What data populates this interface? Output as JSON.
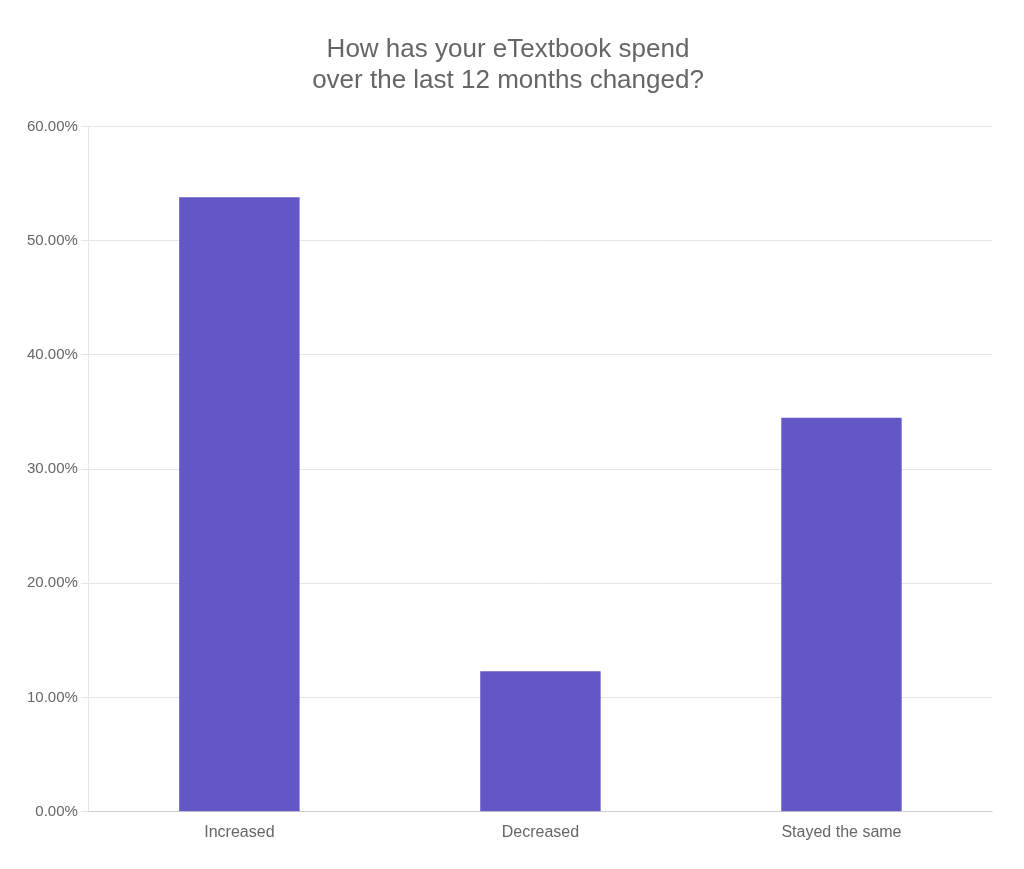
{
  "chart_data": {
    "type": "bar",
    "title": "How has your eTextbook spend\nover the last 12 months changed?",
    "categories": [
      "Increased",
      "Decreased",
      "Stayed the same"
    ],
    "values": [
      0.538,
      0.123,
      0.345
    ],
    "color": "#6357C5",
    "ylim": [
      0,
      0.6
    ],
    "yticks": [
      {
        "value": 0.0,
        "label": "0.00%"
      },
      {
        "value": 0.1,
        "label": "10.00%"
      },
      {
        "value": 0.2,
        "label": "20.00%"
      },
      {
        "value": 0.3,
        "label": "30.00%"
      },
      {
        "value": 0.4,
        "label": "40.00%"
      },
      {
        "value": 0.5,
        "label": "50.00%"
      },
      {
        "value": 0.6,
        "label": "60.00%"
      }
    ],
    "grid": true
  }
}
